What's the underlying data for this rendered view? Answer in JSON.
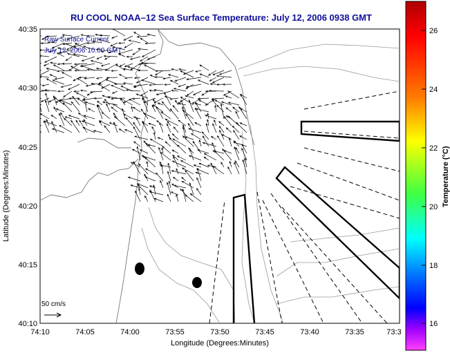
{
  "title": "RU COOL  NOAA–12  Sea Surface Temperature:  July 12, 2006 0938 GMT",
  "legend": {
    "line1": "Raw Surface Current",
    "line2": "July 12, 2006 10:00 GMT"
  },
  "scale_label": "50 cm/s",
  "axes": {
    "xlabel": "Longitude (Degrees:Minutes)",
    "ylabel": "Latitude (Degrees:Minutes)",
    "x_ticks": [
      "74:10",
      "74:05",
      "74:00",
      "73:55",
      "73:50",
      "73:45",
      "73:40",
      "73:35",
      "73:3"
    ],
    "y_ticks": [
      "40:35",
      "40:30",
      "40:25",
      "40:20",
      "40:15",
      "40:10"
    ]
  },
  "colorbar": {
    "label": "Temperature (°C)",
    "ticks": [
      "26",
      "24",
      "22",
      "20",
      "18",
      "16"
    ],
    "colors": [
      "#c00000",
      "#ff0000",
      "#ff8000",
      "#ffff00",
      "#80ff00",
      "#00ff80",
      "#00ffff",
      "#0080ff",
      "#0000ff",
      "#8000ff",
      "#ff00ff"
    ]
  }
}
